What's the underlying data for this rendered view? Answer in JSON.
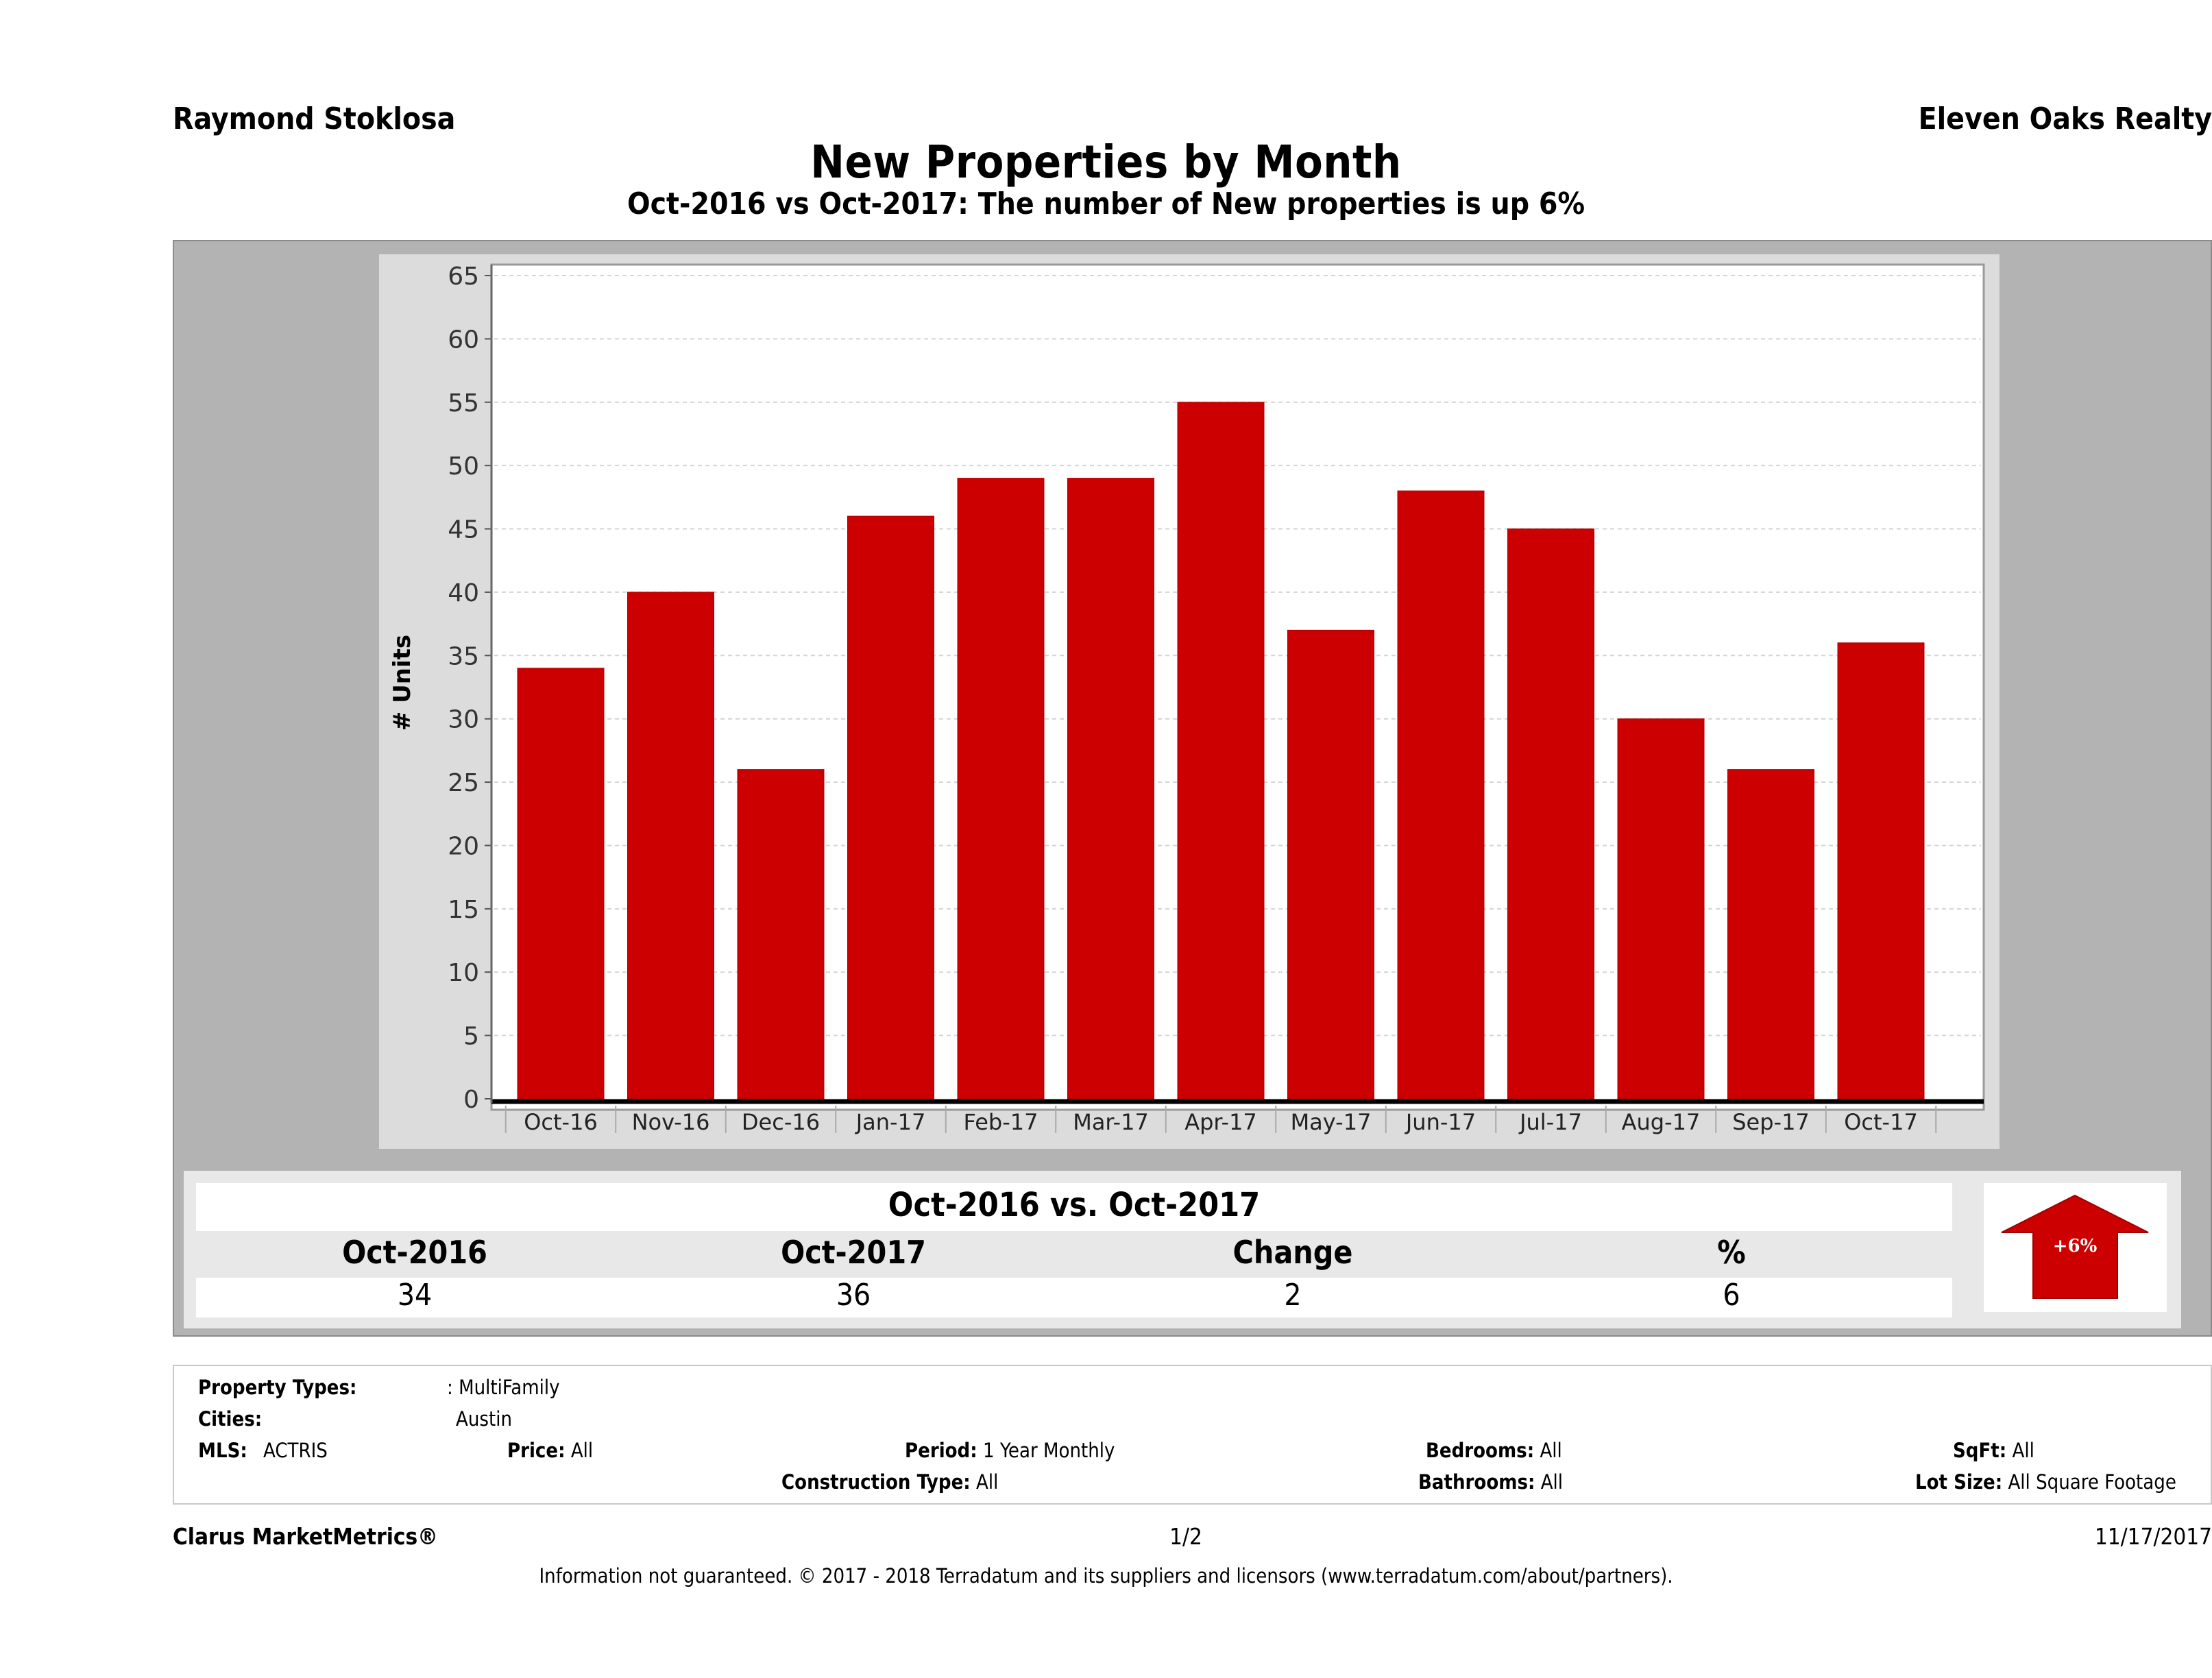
{
  "header": {
    "agent_name": "Raymond Stoklosa",
    "brokerage": "Eleven Oaks Realty",
    "title": "New Properties by Month",
    "subtitle": "Oct-2016 vs Oct-2017: The number of New  properties is up 6%"
  },
  "colors": {
    "bar": "#cc0000",
    "panel": "#b3b3b3",
    "chart_bg": "#dcdcdc",
    "plot_bg": "#ffffff",
    "arrow": "#cc0000"
  },
  "chart_data": {
    "type": "bar",
    "title": "New Properties by Month",
    "xlabel": "",
    "ylabel": "# Units",
    "categories": [
      "Oct-16",
      "Nov-16",
      "Dec-16",
      "Jan-17",
      "Feb-17",
      "Mar-17",
      "Apr-17",
      "May-17",
      "Jun-17",
      "Jul-17",
      "Aug-17",
      "Sep-17",
      "Oct-17"
    ],
    "values": [
      34,
      40,
      26,
      46,
      49,
      49,
      55,
      37,
      48,
      45,
      30,
      26,
      36
    ],
    "ylim": [
      0,
      65
    ],
    "yticks": [
      0,
      5,
      10,
      15,
      20,
      25,
      30,
      35,
      40,
      45,
      50,
      55,
      60,
      65
    ],
    "grid": true,
    "legend": "none"
  },
  "summary": {
    "title": "Oct-2016 vs. Oct-2017",
    "columns": [
      "Oct-2016",
      "Oct-2017",
      "Change",
      "%"
    ],
    "values": [
      "34",
      "36",
      "2",
      "6"
    ],
    "badge": "+6%",
    "badge_direction": "up"
  },
  "filters": {
    "property_types_label": "Property Types:",
    "property_types_value": ": MultiFamily",
    "cities_label": "Cities:",
    "cities_value": "Austin",
    "mls_label": "MLS:",
    "mls_value": "ACTRIS",
    "price_label": "Price:",
    "price_value": "All",
    "period_label": "Period:",
    "period_value": "1 Year Monthly",
    "construction_label": "Construction Type:",
    "construction_value": "All",
    "bedrooms_label": "Bedrooms:",
    "bedrooms_value": "All",
    "bathrooms_label": "Bathrooms:",
    "bathrooms_value": "All",
    "sqft_label": "SqFt:",
    "sqft_value": "All",
    "lot_label": "Lot Size:",
    "lot_value": "All Square Footage"
  },
  "footer": {
    "product": "Clarus MarketMetrics®",
    "page": "1/2",
    "date": "11/17/2017",
    "disclaimer": "Information not guaranteed. © 2017 - 2018 Terradatum and its suppliers and licensors (www.terradatum.com/about/partners)."
  }
}
